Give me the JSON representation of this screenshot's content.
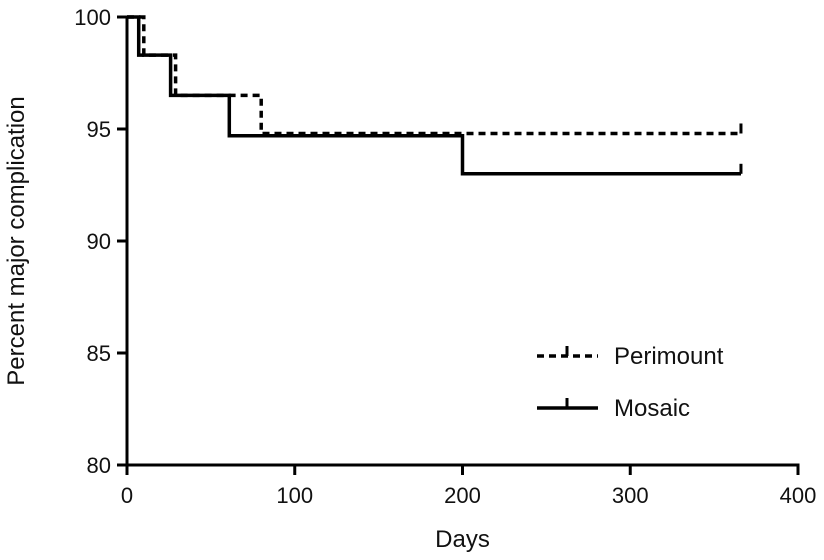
{
  "chart_data": {
    "type": "line",
    "title": "",
    "xlabel": "Days",
    "ylabel": "Percent major complication",
    "xlim": [
      0,
      400
    ],
    "ylim": [
      80,
      100
    ],
    "x_ticks": [
      0,
      100,
      200,
      300,
      400
    ],
    "y_ticks": [
      80,
      85,
      90,
      95,
      100
    ],
    "x_tick_labels": [
      "0",
      "100",
      "200",
      "300",
      "400"
    ],
    "y_tick_labels": [
      "80",
      "85",
      "90",
      "95",
      "100"
    ],
    "grid": false,
    "legend_position": "bottom-right",
    "step": true,
    "series": [
      {
        "name": "Perimount",
        "style": "dashed",
        "x": [
          0,
          10,
          10,
          29,
          29,
          80,
          80,
          366
        ],
        "y": [
          100,
          100,
          98.3,
          98.3,
          96.5,
          96.5,
          94.8,
          94.8
        ],
        "censor_x": [
          366
        ]
      },
      {
        "name": "Mosaic",
        "style": "solid",
        "x": [
          0,
          7,
          7,
          26,
          26,
          61,
          61,
          200,
          200,
          366
        ],
        "y": [
          100,
          100,
          98.3,
          98.3,
          96.5,
          96.5,
          94.7,
          94.7,
          93.0,
          93.0
        ],
        "censor_x": [
          366
        ]
      }
    ]
  }
}
